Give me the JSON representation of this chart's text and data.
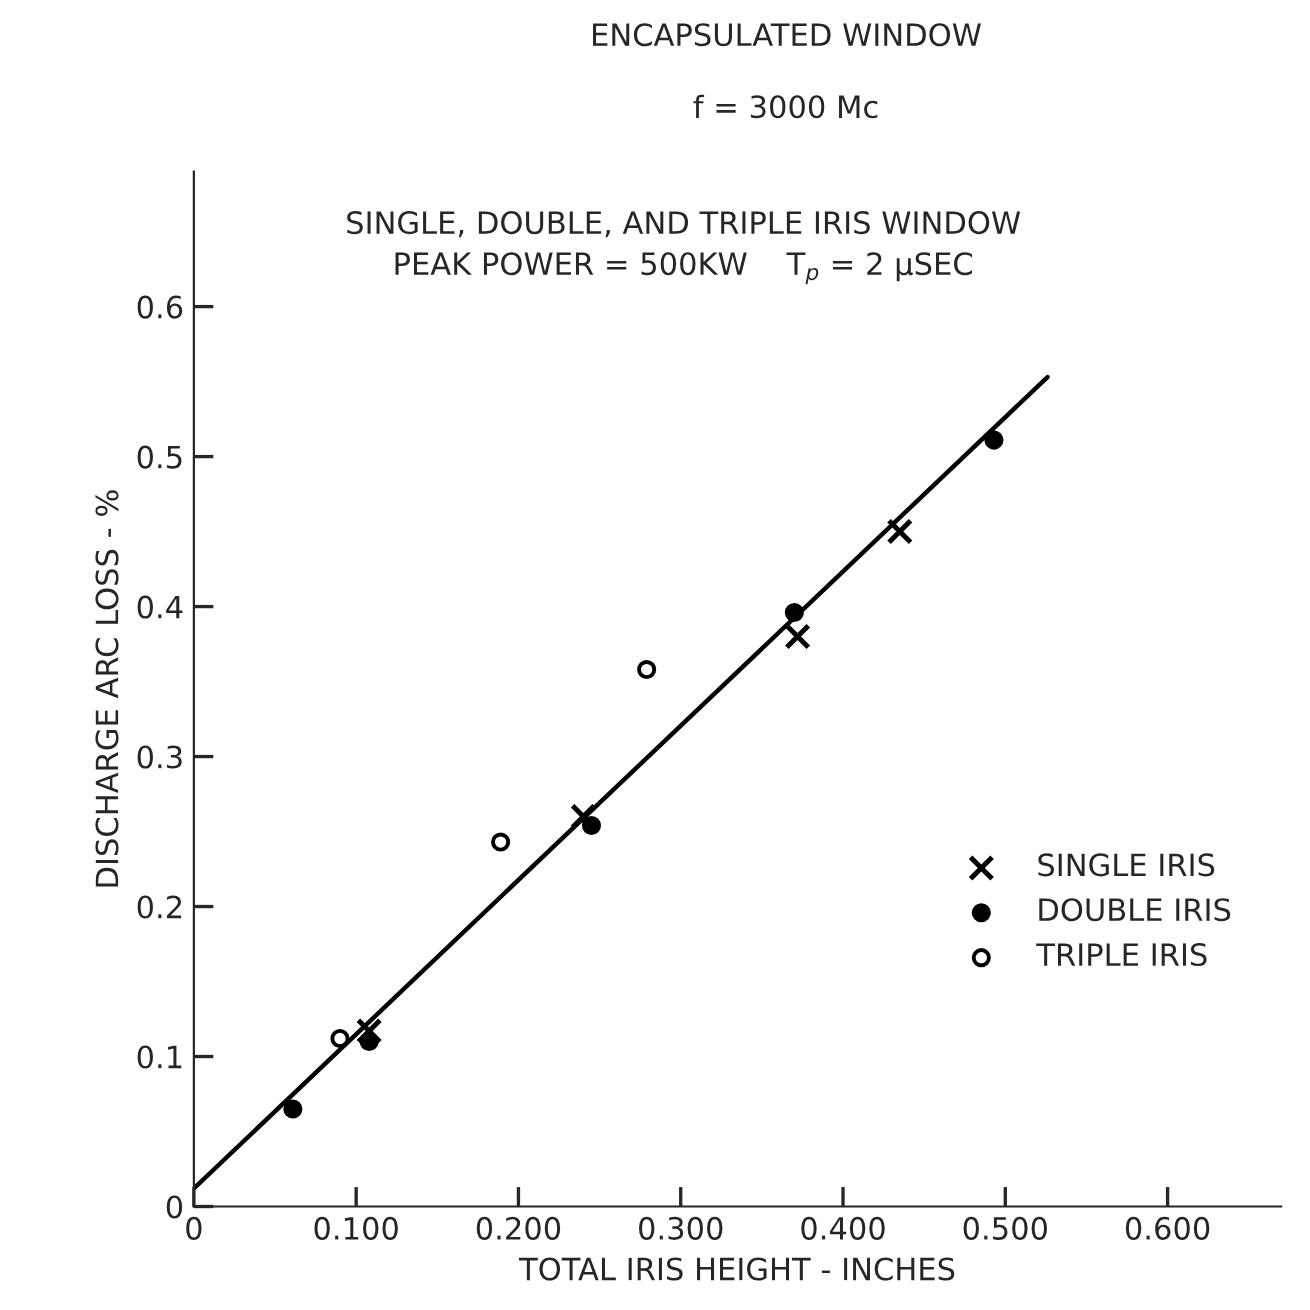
{
  "chart_data": {
    "type": "scatter",
    "title": "ENCAPSULATED WINDOW",
    "subtitle": "f = 3000 Mc",
    "annotations": [
      "SINGLE, DOUBLE, AND TRIPLE IRIS WINDOW",
      "PEAK POWER = 500KW    T$_{p}$ = 2 μSEC"
    ],
    "xlabel": "TOTAL IRIS HEIGHT - INCHES",
    "ylabel": "DISCHARGE ARC LOSS - %",
    "series": [
      {
        "name": "SINGLE IRIS",
        "color": "#000000",
        "marker": "cross",
        "x": [
          0.108,
          0.24,
          0.372,
          0.435
        ],
        "values": [
          0.117,
          0.26,
          0.38,
          0.45
        ]
      },
      {
        "name": "DOUBLE IRIS",
        "color": "#000000",
        "marker": "circle",
        "x": [
          0.061,
          0.108,
          0.245,
          0.37,
          0.493
        ],
        "values": [
          0.065,
          0.11,
          0.254,
          0.396,
          0.511
        ]
      },
      {
        "name": "TRIPLE IRIS",
        "color": "#000000",
        "marker": "open circle",
        "x": [
          0.09,
          0.189,
          0.279
        ],
        "values": [
          0.112,
          0.243,
          0.358
        ]
      },
      {
        "type": "line",
        "color": "#000000",
        "line_style": "solid",
        "x": [
          0,
          0.526
        ],
        "values": [
          0.012,
          0.553
        ]
      }
    ],
    "xlim": [
      0,
      0.67
    ],
    "ylim": [
      0,
      0.69
    ],
    "xticks": [
      {
        "value": 0,
        "label": "0"
      },
      {
        "value": 0.1,
        "label": "0.100"
      },
      {
        "value": 0.2,
        "label": "0.200"
      },
      {
        "value": 0.3,
        "label": "0.300"
      },
      {
        "value": 0.4,
        "label": "0.400"
      },
      {
        "value": 0.5,
        "label": "0.500"
      },
      {
        "value": 0.6,
        "label": "0.600"
      }
    ],
    "yticks": [
      0,
      0.1,
      0.2,
      0.3,
      0.4,
      0.5,
      0.6
    ],
    "grid": false,
    "legend": "bottom right"
  }
}
